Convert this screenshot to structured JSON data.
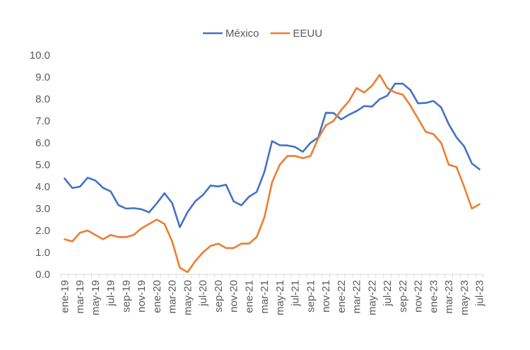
{
  "chart_data": {
    "type": "line",
    "title": "",
    "xlabel": "",
    "ylabel": "",
    "ylim": [
      0,
      10
    ],
    "yticks": [
      "0.0",
      "1.0",
      "2.0",
      "3.0",
      "4.0",
      "5.0",
      "6.0",
      "7.0",
      "8.0",
      "9.0",
      "10.0"
    ],
    "grid": false,
    "legend_position": "top-center",
    "x": [
      "ene-19",
      "feb-19",
      "mar-19",
      "abr-19",
      "may-19",
      "jun-19",
      "jul-19",
      "ago-19",
      "sep-19",
      "oct-19",
      "nov-19",
      "dic-19",
      "ene-20",
      "feb-20",
      "mar-20",
      "abr-20",
      "may-20",
      "jun-20",
      "jul-20",
      "ago-20",
      "sep-20",
      "oct-20",
      "nov-20",
      "dic-20",
      "ene-21",
      "feb-21",
      "mar-21",
      "abr-21",
      "may-21",
      "jun-21",
      "jul-21",
      "ago-21",
      "sep-21",
      "oct-21",
      "nov-21",
      "dic-21",
      "ene-22",
      "feb-22",
      "mar-22",
      "abr-22",
      "may-22",
      "jun-22",
      "jul-22",
      "ago-22",
      "sep-22",
      "oct-22",
      "nov-22",
      "dic-22",
      "ene-23",
      "feb-23",
      "mar-23",
      "abr-23",
      "may-23",
      "jun-23",
      "jul-23"
    ],
    "tick_labels": [
      "ene-19",
      "mar-19",
      "may-19",
      "jul-19",
      "sep-19",
      "nov-19",
      "ene-20",
      "mar-20",
      "may-20",
      "jul-20",
      "sep-20",
      "nov-20",
      "ene-21",
      "mar-21",
      "may-21",
      "jul-21",
      "sep-21",
      "nov-21",
      "ene-22",
      "mar-22",
      "may-22",
      "jul-22",
      "sep-22",
      "nov-22",
      "ene-23",
      "mar-23",
      "may-23",
      "jul-23"
    ],
    "series": [
      {
        "name": "México",
        "color": "#4472C4",
        "values": [
          4.37,
          3.94,
          4.0,
          4.41,
          4.28,
          3.95,
          3.78,
          3.16,
          3.0,
          3.02,
          2.97,
          2.83,
          3.24,
          3.7,
          3.25,
          2.15,
          2.84,
          3.33,
          3.62,
          4.05,
          4.01,
          4.09,
          3.33,
          3.15,
          3.54,
          3.76,
          4.67,
          6.08,
          5.89,
          5.88,
          5.81,
          5.59,
          6.0,
          6.24,
          7.37,
          7.36,
          7.07,
          7.28,
          7.45,
          7.68,
          7.65,
          7.99,
          8.15,
          8.7,
          8.7,
          8.41,
          7.8,
          7.82,
          7.91,
          7.62,
          6.85,
          6.25,
          5.84,
          5.06,
          4.79
        ]
      },
      {
        "name": "EEUU",
        "color": "#ED7D31",
        "values": [
          1.6,
          1.5,
          1.9,
          2.0,
          1.8,
          1.6,
          1.8,
          1.7,
          1.7,
          1.8,
          2.1,
          2.3,
          2.5,
          2.3,
          1.5,
          0.3,
          0.1,
          0.6,
          1.0,
          1.3,
          1.4,
          1.2,
          1.2,
          1.4,
          1.4,
          1.7,
          2.6,
          4.2,
          5.0,
          5.4,
          5.4,
          5.3,
          5.4,
          6.2,
          6.8,
          7.0,
          7.5,
          7.9,
          8.5,
          8.3,
          8.6,
          9.1,
          8.5,
          8.3,
          8.2,
          7.7,
          7.1,
          6.5,
          6.4,
          6.0,
          5.0,
          4.9,
          4.0,
          3.0,
          3.2
        ]
      }
    ]
  }
}
